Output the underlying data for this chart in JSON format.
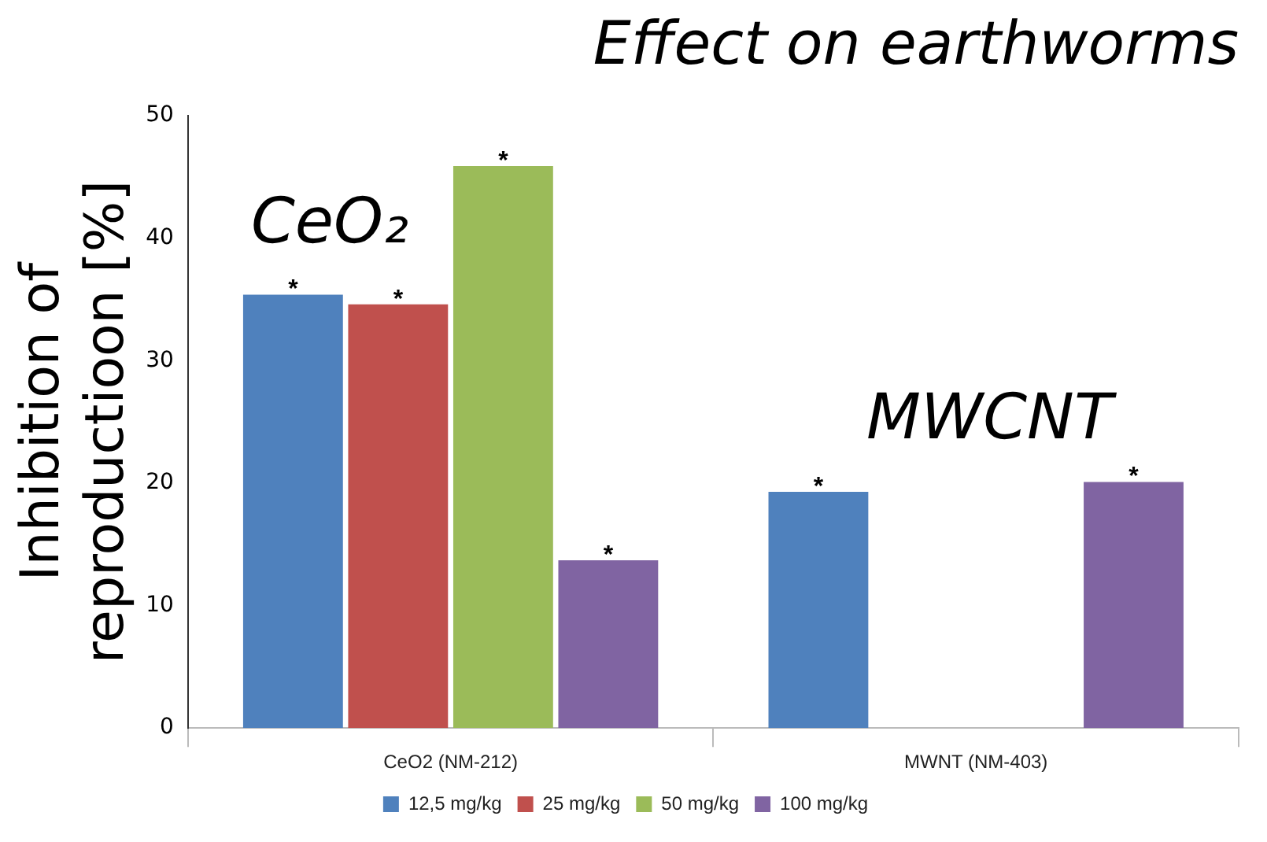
{
  "chart_data": {
    "type": "bar",
    "title": "Effect on earthworms",
    "ylabel": "Inhibition of reproductioon [%]",
    "categories": [
      "CeO2 (NM-212)",
      "MWNT (NM-403)"
    ],
    "series": [
      {
        "name": "12,5 mg/kg",
        "color": "#4f81bd",
        "values": [
          35.4,
          19.3
        ],
        "value_labels": [
          "*",
          "*"
        ]
      },
      {
        "name": "25 mg/kg",
        "color": "#c0504d",
        "values": [
          34.6,
          null
        ],
        "value_labels": [
          "*",
          null
        ]
      },
      {
        "name": "50 mg/kg",
        "color": "#9bbb59",
        "values": [
          45.9,
          null
        ],
        "value_labels": [
          "*",
          null
        ]
      },
      {
        "name": "100 mg/kg",
        "color": "#8064a2",
        "values": [
          13.7,
          20.1
        ],
        "value_labels": [
          "*",
          "*"
        ]
      }
    ],
    "ylim": [
      0,
      50
    ],
    "yticks": [
      0,
      10,
      20,
      30,
      40,
      50
    ],
    "grid": false,
    "legend": "bottom",
    "annotations": [
      "CeO₂",
      "MWCNT"
    ]
  }
}
